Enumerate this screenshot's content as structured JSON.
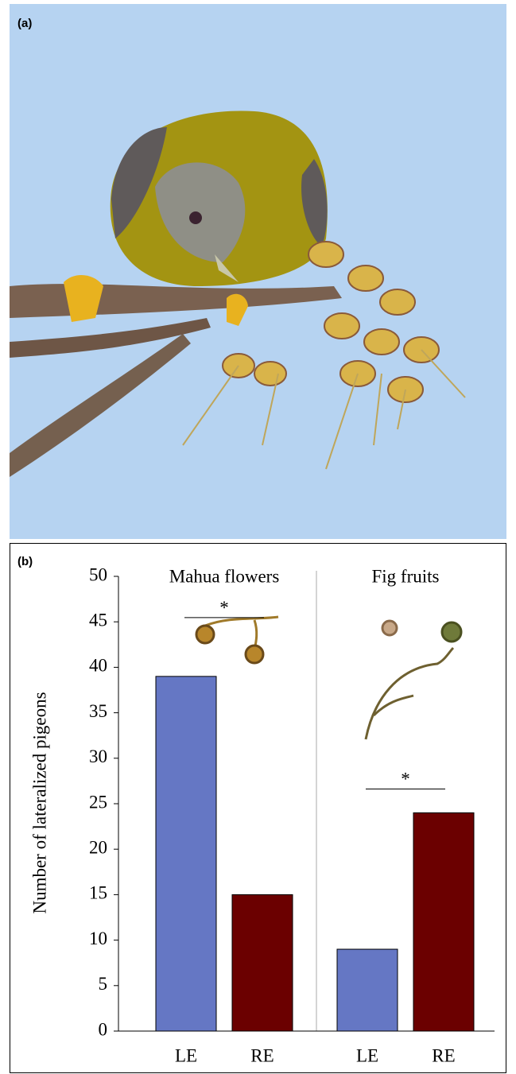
{
  "panel_a": {
    "label": "(a)"
  },
  "chart_data": {
    "type": "bar",
    "label": "(b)",
    "y_label": "Number of lateralized pigeons",
    "ylim": [
      0,
      50
    ],
    "yticks": [
      0,
      5,
      10,
      15,
      20,
      25,
      30,
      35,
      40,
      45,
      50
    ],
    "groups": [
      {
        "name": "Mahua flowers",
        "categories": [
          "LE",
          "RE"
        ],
        "values": [
          39,
          15
        ],
        "colors": [
          "#6577c4",
          "#6b0000"
        ],
        "annotation": "*"
      },
      {
        "name": "Fig fruits",
        "categories": [
          "LE",
          "RE"
        ],
        "values": [
          9,
          24
        ],
        "colors": [
          "#6577c4",
          "#6b0000"
        ],
        "annotation": "*"
      }
    ]
  }
}
